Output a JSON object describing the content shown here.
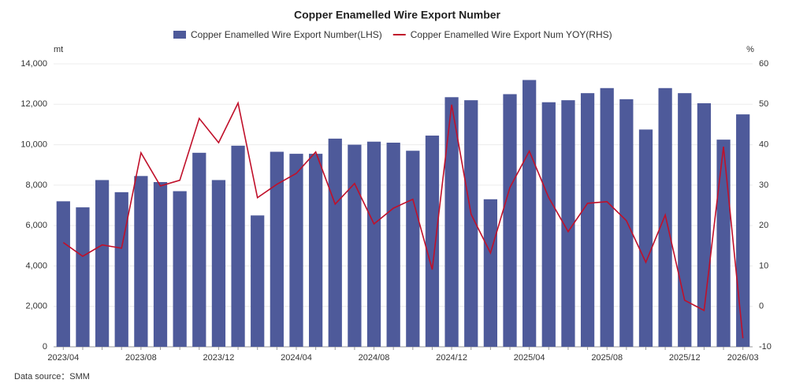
{
  "chart_data": {
    "type": "bar_line",
    "title": "Copper Enamelled Wire Export Number",
    "y_label": "mt",
    "y2_label": "%",
    "source": "Data source：SMM",
    "categories": [
      "2023/04",
      null,
      null,
      null,
      "2023/08",
      null,
      null,
      null,
      "2023/12",
      null,
      null,
      null,
      "2024/04",
      null,
      null,
      null,
      "2024/08",
      null,
      null,
      null,
      "2024/12",
      null,
      null,
      null,
      "2025/04",
      null,
      null,
      null,
      "2025/08",
      null,
      null,
      null,
      "2025/12",
      null,
      null,
      "2026/03"
    ],
    "series": [
      {
        "name": "Copper Enamelled Wire Export Number(LHS)",
        "color": "#4e5a9a",
        "type": "bar",
        "values": [
          7200,
          6900,
          8250,
          7650,
          8450,
          8150,
          7700,
          9600,
          8250,
          9950,
          6500,
          9650,
          9550,
          9550,
          10300,
          10000,
          10150,
          10100,
          9700,
          10450,
          12350,
          12200,
          7300,
          12500,
          13200,
          12100,
          12200,
          12550,
          12800,
          12250,
          10750,
          12800,
          12550,
          12050,
          10250,
          11500
        ]
      },
      {
        "name": "Copper Enamelled Wire Export Num YOY(RHS)",
        "color": "#c0102a",
        "type": "line",
        "axis": "y2",
        "values": [
          15.8,
          12.4,
          15.2,
          14.4,
          38.0,
          29.8,
          31.2,
          46.5,
          40.5,
          50.3,
          26.9,
          30.2,
          32.9,
          38.2,
          25.3,
          30.4,
          20.4,
          24.3,
          26.5,
          9.1,
          49.9,
          22.8,
          13.2,
          29.4,
          38.4,
          26.9,
          18.5,
          25.5,
          25.9,
          21.2,
          10.9,
          22.6,
          1.5,
          -1.0,
          39.5,
          -7.9
        ]
      }
    ],
    "ylim": [
      0,
      14000
    ],
    "yticks": [
      0,
      {
        "value": 2000,
        "label": "2,000"
      },
      {
        "value": 4000,
        "label": "4,000"
      },
      {
        "value": 6000,
        "label": "6,000"
      },
      {
        "value": 8000,
        "label": "8,000"
      },
      {
        "value": 10000,
        "label": "10,000"
      },
      {
        "value": 12000,
        "label": "12,000"
      },
      {
        "value": 14000,
        "label": "14,000"
      }
    ],
    "y2lim": [
      -10,
      60
    ],
    "y2ticks": [
      -10,
      0,
      10,
      20,
      30,
      40,
      50,
      60
    ],
    "legend": "top"
  }
}
